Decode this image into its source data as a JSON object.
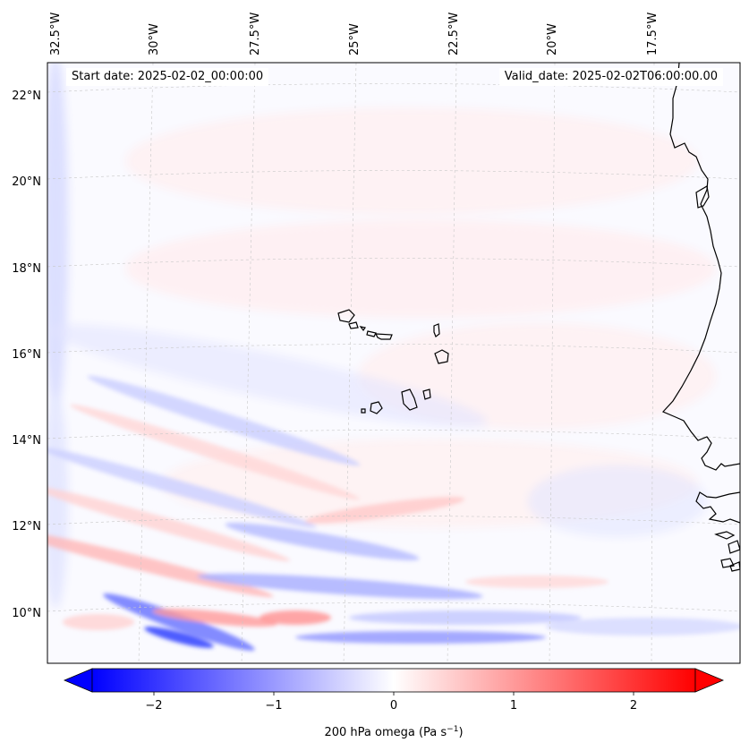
{
  "map": {
    "start_label": "Start date: 2025-02-02_00:00:00",
    "valid_label": "Valid_date: 2025-02-02T06:00:00.00",
    "lon_labels": [
      "32.5°W",
      "30°W",
      "27.5°W",
      "25°W",
      "22.5°W",
      "20°W",
      "17.5°W"
    ],
    "lat_labels": [
      "22°N",
      "20°N",
      "18°N",
      "16°N",
      "14°N",
      "12°N",
      "10°N"
    ]
  },
  "colorbar": {
    "label": "200 hPa omega (Pa s",
    "label_sup": "−1",
    "label_end": ")",
    "ticks": [
      "−2",
      "−1",
      "0",
      "1",
      "2"
    ],
    "colors": {
      "low": "#0000ff",
      "mid": "#ffffff",
      "high": "#ff0000"
    }
  },
  "colors": {
    "coast": "#000000",
    "grid": "#c8c8c8",
    "field_neg": "#2b3cff",
    "field_pos": "#ff3030"
  }
}
